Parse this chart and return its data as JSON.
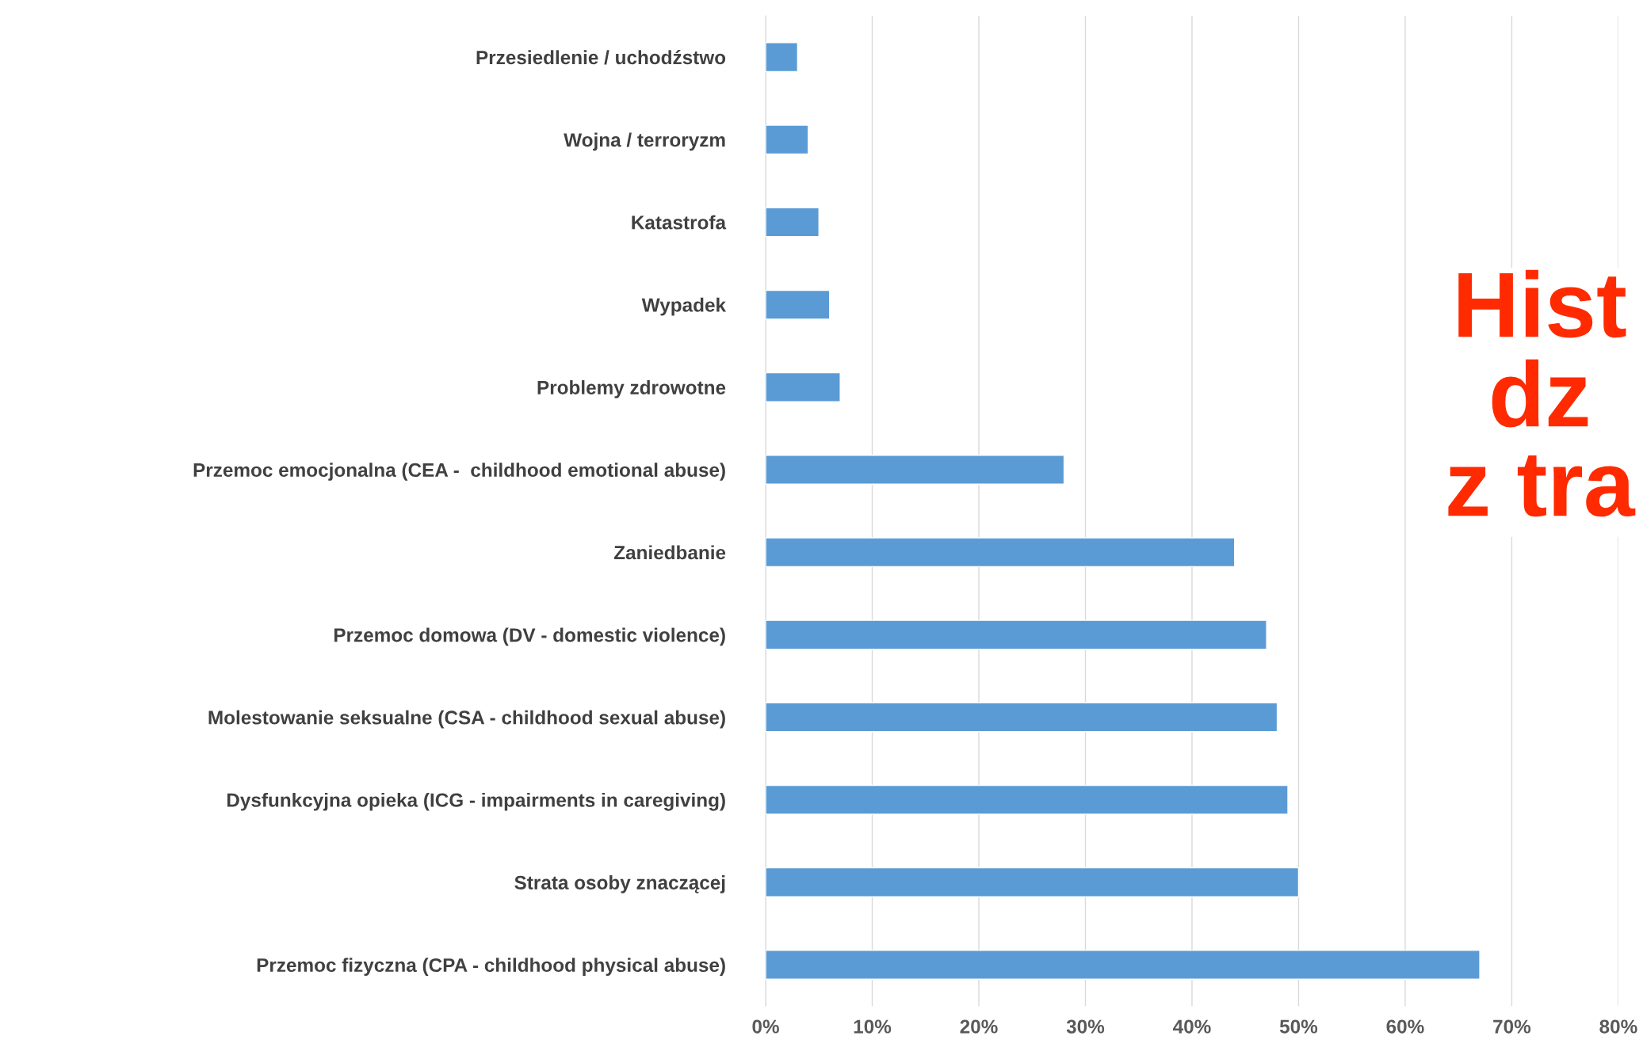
{
  "chart_data": {
    "type": "bar",
    "orientation": "horizontal",
    "title": "Hist\ndz\nz tra",
    "categories": [
      "Przesiedlenie / uchodźstwo",
      "Wojna / terroryzm",
      "Katastrofa",
      "Wypadek",
      "Problemy zdrowotne",
      "Przemoc emocjonalna (CEA -  childhood emotional abuse)",
      "Zaniedbanie",
      "Przemoc domowa (DV - domestic violence)",
      "Molestowanie seksualne (CSA - childhood sexual abuse)",
      "Dysfunkcyjna opieka (ICG - impairments in caregiving)",
      "Strata osoby znaczącej",
      "Przemoc fizyczna (CPA - childhood physical abuse)"
    ],
    "values": [
      3,
      4,
      5,
      6,
      7,
      28,
      44,
      47,
      48,
      49,
      50,
      67
    ],
    "color": "#5b9bd5",
    "xlim": [
      0,
      80
    ],
    "xticks": [
      {
        "value": 0,
        "label": "0%"
      },
      {
        "value": 10,
        "label": "10%"
      },
      {
        "value": 20,
        "label": "20%"
      },
      {
        "value": 30,
        "label": "30%"
      },
      {
        "value": 40,
        "label": "40%"
      },
      {
        "value": 50,
        "label": "50%"
      },
      {
        "value": 60,
        "label": "60%"
      },
      {
        "value": 70,
        "label": "70%"
      },
      {
        "value": 80,
        "label": "80%"
      }
    ],
    "grid": "x",
    "legend": false
  }
}
